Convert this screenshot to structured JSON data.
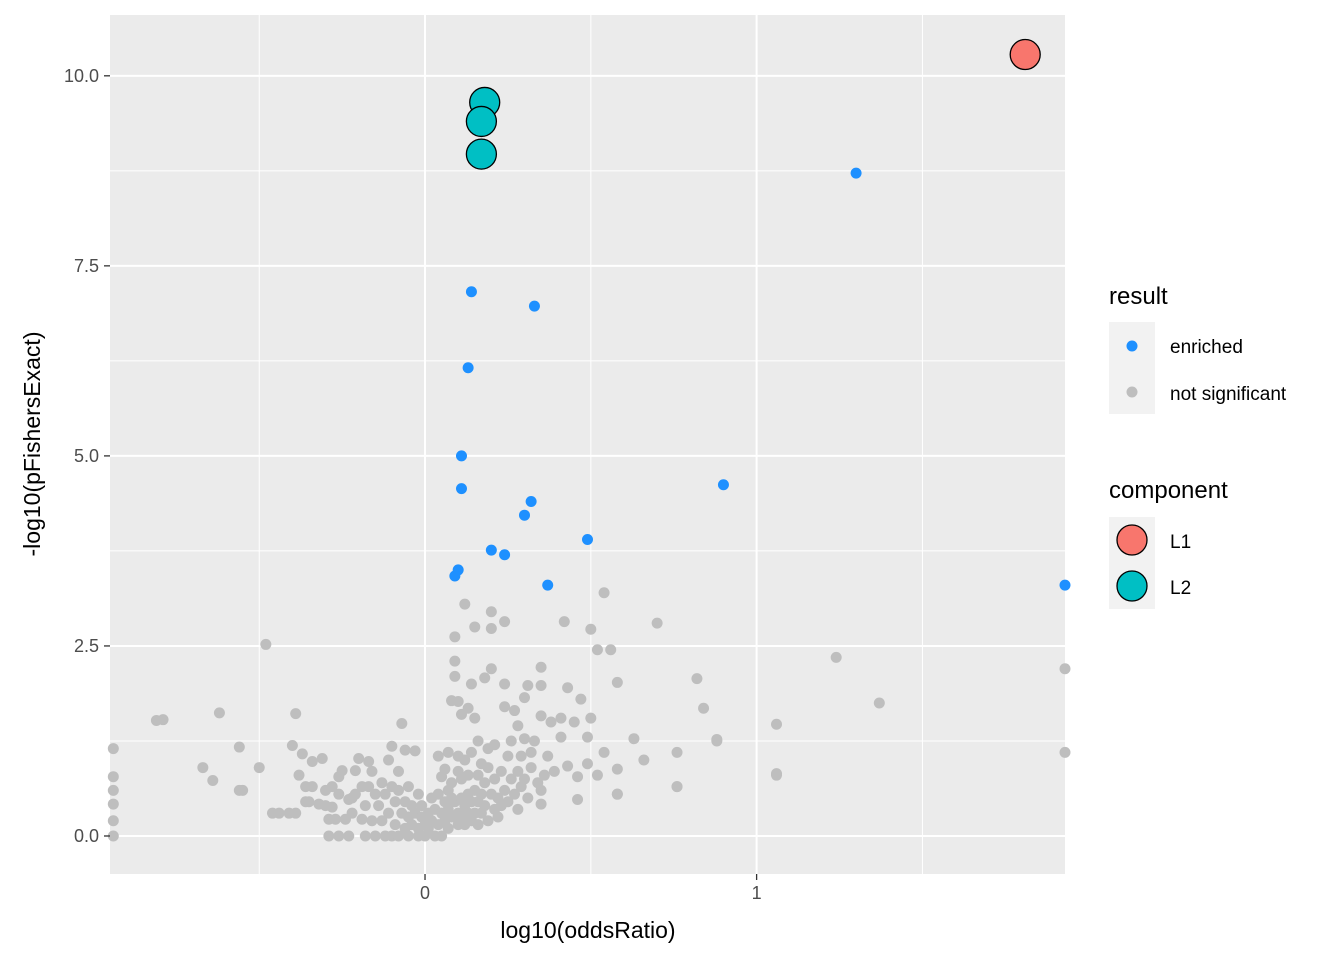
{
  "chart_data": {
    "type": "scatter",
    "xlabel": "log10(oddsRatio)",
    "ylabel": "-log10(pFishersExact)",
    "xlim": [
      -0.95,
      1.93
    ],
    "ylim": [
      -0.5,
      10.8
    ],
    "x_ticks": [
      0,
      1
    ],
    "x_tick_labels": [
      "0",
      "1"
    ],
    "x_minor_ticks": [
      -0.5,
      0.5,
      1.5
    ],
    "y_ticks": [
      0.0,
      2.5,
      5.0,
      7.5,
      10.0
    ],
    "y_tick_labels": [
      "0.0",
      "2.5",
      "5.0",
      "7.5",
      "10.0"
    ],
    "y_minor_ticks": [
      1.25,
      3.75,
      6.25,
      8.75
    ],
    "grid": true,
    "legend_position": "right",
    "colors": {
      "panel": "#ebebeb",
      "grid": "#ffffff",
      "enriched": "#1e90ff",
      "not_significant": "#bebebe",
      "L1": "#f8766d",
      "L2": "#00bfc4"
    },
    "legend": {
      "result_title": "result",
      "result_items": [
        {
          "label": "enriched",
          "color": "#1e90ff"
        },
        {
          "label": "not significant",
          "color": "#bebebe"
        }
      ],
      "component_title": "component",
      "component_items": [
        {
          "label": "L1",
          "color": "#f8766d"
        },
        {
          "label": "L2",
          "color": "#00bfc4"
        }
      ]
    },
    "series": [
      {
        "name": "not significant",
        "color": "#bebebe",
        "points": [
          [
            -0.94,
            1.15
          ],
          [
            -0.94,
            0.78
          ],
          [
            -0.94,
            0.6
          ],
          [
            -0.94,
            0.42
          ],
          [
            -0.94,
            0.2
          ],
          [
            -0.94,
            0.0
          ],
          [
            -0.81,
            1.52
          ],
          [
            -0.79,
            1.53
          ],
          [
            -0.67,
            0.9
          ],
          [
            -0.64,
            0.73
          ],
          [
            -0.62,
            1.62
          ],
          [
            -0.56,
            1.17
          ],
          [
            -0.56,
            0.6
          ],
          [
            -0.55,
            0.6
          ],
          [
            -0.5,
            0.9
          ],
          [
            -0.48,
            2.52
          ],
          [
            -0.46,
            0.3
          ],
          [
            -0.44,
            0.3
          ],
          [
            -0.41,
            0.3
          ],
          [
            -0.4,
            1.19
          ],
          [
            -0.39,
            1.61
          ],
          [
            -0.39,
            0.3
          ],
          [
            -0.38,
            0.8
          ],
          [
            -0.37,
            1.08
          ],
          [
            -0.36,
            0.45
          ],
          [
            -0.36,
            0.65
          ],
          [
            -0.35,
            0.45
          ],
          [
            -0.34,
            0.65
          ],
          [
            -0.34,
            0.98
          ],
          [
            -0.32,
            0.42
          ],
          [
            -0.31,
            1.02
          ],
          [
            -0.3,
            0.6
          ],
          [
            -0.3,
            0.4
          ],
          [
            -0.29,
            0.22
          ],
          [
            -0.29,
            0.0
          ],
          [
            -0.28,
            0.65
          ],
          [
            -0.28,
            0.38
          ],
          [
            -0.27,
            0.22
          ],
          [
            -0.26,
            0.0
          ],
          [
            -0.26,
            0.78
          ],
          [
            -0.26,
            0.55
          ],
          [
            -0.25,
            0.86
          ],
          [
            -0.24,
            0.22
          ],
          [
            -0.23,
            0.48
          ],
          [
            -0.23,
            0.0
          ],
          [
            -0.22,
            0.5
          ],
          [
            -0.22,
            0.3
          ],
          [
            -0.21,
            0.55
          ],
          [
            -0.21,
            0.86
          ],
          [
            -0.2,
            1.02
          ],
          [
            -0.19,
            0.22
          ],
          [
            -0.19,
            0.65
          ],
          [
            -0.18,
            0.4
          ],
          [
            -0.18,
            0.0
          ],
          [
            -0.17,
            0.65
          ],
          [
            -0.17,
            0.98
          ],
          [
            -0.16,
            0.2
          ],
          [
            -0.16,
            0.85
          ],
          [
            -0.15,
            0.55
          ],
          [
            -0.15,
            0.0
          ],
          [
            -0.14,
            0.4
          ],
          [
            -0.13,
            0.7
          ],
          [
            -0.13,
            0.2
          ],
          [
            -0.12,
            0.0
          ],
          [
            -0.12,
            0.55
          ],
          [
            -0.11,
            1.0
          ],
          [
            -0.11,
            0.3
          ],
          [
            -0.1,
            0.65
          ],
          [
            -0.1,
            0.0
          ],
          [
            -0.1,
            1.18
          ],
          [
            -0.09,
            0.45
          ],
          [
            -0.09,
            0.15
          ],
          [
            -0.08,
            0.85
          ],
          [
            -0.08,
            0.6
          ],
          [
            -0.08,
            0.0
          ],
          [
            -0.07,
            0.3
          ],
          [
            -0.07,
            1.48
          ],
          [
            -0.06,
            0.45
          ],
          [
            -0.06,
            0.1
          ],
          [
            -0.06,
            1.13
          ],
          [
            -0.05,
            0.65
          ],
          [
            -0.05,
            0.25
          ],
          [
            -0.05,
            0.0
          ],
          [
            -0.04,
            0.4
          ],
          [
            -0.04,
            0.15
          ],
          [
            -0.03,
            0.3
          ],
          [
            -0.03,
            1.12
          ],
          [
            -0.02,
            0.55
          ],
          [
            -0.02,
            0.1
          ],
          [
            -0.02,
            0.0
          ],
          [
            -0.01,
            0.25
          ],
          [
            -0.01,
            0.4
          ],
          [
            0.0,
            0.15
          ],
          [
            0.0,
            0.0
          ],
          [
            0.01,
            0.3
          ],
          [
            0.01,
            0.1
          ],
          [
            0.02,
            0.5
          ],
          [
            0.02,
            0.2
          ],
          [
            0.03,
            0.0
          ],
          [
            0.03,
            0.35
          ],
          [
            0.04,
            0.55
          ],
          [
            0.04,
            0.15
          ],
          [
            0.04,
            1.05
          ],
          [
            0.05,
            0.3
          ],
          [
            0.05,
            0.0
          ],
          [
            0.05,
            0.78
          ],
          [
            0.06,
            0.45
          ],
          [
            0.06,
            0.2
          ],
          [
            0.06,
            0.88
          ],
          [
            0.07,
            0.6
          ],
          [
            0.07,
            0.35
          ],
          [
            0.07,
            0.1
          ],
          [
            0.07,
            1.1
          ],
          [
            0.08,
            0.5
          ],
          [
            0.08,
            0.25
          ],
          [
            0.08,
            1.78
          ],
          [
            0.08,
            0.7
          ],
          [
            0.09,
            2.3
          ],
          [
            0.09,
            2.62
          ],
          [
            0.09,
            2.1
          ],
          [
            0.09,
            0.45
          ],
          [
            0.1,
            0.3
          ],
          [
            0.1,
            0.15
          ],
          [
            0.1,
            1.77
          ],
          [
            0.1,
            0.85
          ],
          [
            0.1,
            1.05
          ],
          [
            0.11,
            0.5
          ],
          [
            0.11,
            0.25
          ],
          [
            0.11,
            1.6
          ],
          [
            0.11,
            0.75
          ],
          [
            0.12,
            3.05
          ],
          [
            0.12,
            0.4
          ],
          [
            0.12,
            0.15
          ],
          [
            0.12,
            1.0
          ],
          [
            0.13,
            0.55
          ],
          [
            0.13,
            0.3
          ],
          [
            0.13,
            1.68
          ],
          [
            0.13,
            0.8
          ],
          [
            0.14,
            2.0
          ],
          [
            0.14,
            0.45
          ],
          [
            0.14,
            0.2
          ],
          [
            0.14,
            1.1
          ],
          [
            0.15,
            0.6
          ],
          [
            0.15,
            2.75
          ],
          [
            0.15,
            0.3
          ],
          [
            0.15,
            1.55
          ],
          [
            0.16,
            0.8
          ],
          [
            0.16,
            0.45
          ],
          [
            0.16,
            1.25
          ],
          [
            0.16,
            0.15
          ],
          [
            0.17,
            0.55
          ],
          [
            0.17,
            0.3
          ],
          [
            0.17,
            0.95
          ],
          [
            0.18,
            2.08
          ],
          [
            0.18,
            0.7
          ],
          [
            0.18,
            0.4
          ],
          [
            0.19,
            0.9
          ],
          [
            0.19,
            0.2
          ],
          [
            0.19,
            1.15
          ],
          [
            0.2,
            2.95
          ],
          [
            0.2,
            2.2
          ],
          [
            0.2,
            2.73
          ],
          [
            0.2,
            0.55
          ],
          [
            0.21,
            0.35
          ],
          [
            0.21,
            0.75
          ],
          [
            0.21,
            1.2
          ],
          [
            0.22,
            0.5
          ],
          [
            0.22,
            0.25
          ],
          [
            0.23,
            0.85
          ],
          [
            0.23,
            0.4
          ],
          [
            0.24,
            2.82
          ],
          [
            0.24,
            1.7
          ],
          [
            0.24,
            0.6
          ],
          [
            0.24,
            2.0
          ],
          [
            0.25,
            1.05
          ],
          [
            0.25,
            0.45
          ],
          [
            0.26,
            0.75
          ],
          [
            0.26,
            1.25
          ],
          [
            0.27,
            1.65
          ],
          [
            0.27,
            0.55
          ],
          [
            0.28,
            0.85
          ],
          [
            0.28,
            1.45
          ],
          [
            0.28,
            0.35
          ],
          [
            0.29,
            1.05
          ],
          [
            0.29,
            0.65
          ],
          [
            0.3,
            1.82
          ],
          [
            0.3,
            1.28
          ],
          [
            0.3,
            0.75
          ],
          [
            0.31,
            1.98
          ],
          [
            0.31,
            0.5
          ],
          [
            0.32,
            1.1
          ],
          [
            0.32,
            0.9
          ],
          [
            0.33,
            1.25
          ],
          [
            0.34,
            0.7
          ],
          [
            0.35,
            2.22
          ],
          [
            0.35,
            1.98
          ],
          [
            0.35,
            1.58
          ],
          [
            0.35,
            0.6
          ],
          [
            0.35,
            0.42
          ],
          [
            0.36,
            0.8
          ],
          [
            0.37,
            1.05
          ],
          [
            0.38,
            1.5
          ],
          [
            0.39,
            0.85
          ],
          [
            0.41,
            1.55
          ],
          [
            0.41,
            1.3
          ],
          [
            0.42,
            2.82
          ],
          [
            0.43,
            1.95
          ],
          [
            0.43,
            0.92
          ],
          [
            0.45,
            1.5
          ],
          [
            0.46,
            0.48
          ],
          [
            0.46,
            0.78
          ],
          [
            0.47,
            1.8
          ],
          [
            0.49,
            1.3
          ],
          [
            0.49,
            0.95
          ],
          [
            0.5,
            1.55
          ],
          [
            0.5,
            2.72
          ],
          [
            0.52,
            2.45
          ],
          [
            0.52,
            0.8
          ],
          [
            0.54,
            3.2
          ],
          [
            0.54,
            1.1
          ],
          [
            0.56,
            2.45
          ],
          [
            0.58,
            2.02
          ],
          [
            0.58,
            0.88
          ],
          [
            0.58,
            0.55
          ],
          [
            0.58,
            0.55
          ],
          [
            0.63,
            1.28
          ],
          [
            0.66,
            1.0
          ],
          [
            0.7,
            2.8
          ],
          [
            0.76,
            1.1
          ],
          [
            0.76,
            0.65
          ],
          [
            0.76,
            0.65
          ],
          [
            0.82,
            2.07
          ],
          [
            0.84,
            1.68
          ],
          [
            0.88,
            1.27
          ],
          [
            0.88,
            1.25
          ],
          [
            1.06,
            1.47
          ],
          [
            1.06,
            0.82
          ],
          [
            1.06,
            0.8
          ],
          [
            1.24,
            2.35
          ],
          [
            1.37,
            1.75
          ],
          [
            1.93,
            2.2
          ],
          [
            1.93,
            1.1
          ]
        ]
      },
      {
        "name": "enriched",
        "color": "#1e90ff",
        "points": [
          [
            1.3,
            8.72
          ],
          [
            0.14,
            7.16
          ],
          [
            0.33,
            6.97
          ],
          [
            0.13,
            6.16
          ],
          [
            0.11,
            5.0
          ],
          [
            0.11,
            4.57
          ],
          [
            0.9,
            4.62
          ],
          [
            0.32,
            4.4
          ],
          [
            0.3,
            4.22
          ],
          [
            0.49,
            3.9
          ],
          [
            0.2,
            3.76
          ],
          [
            0.24,
            3.7
          ],
          [
            0.1,
            3.5
          ],
          [
            0.09,
            3.42
          ],
          [
            0.37,
            3.3
          ],
          [
            1.93,
            3.3
          ]
        ]
      },
      {
        "name": "L1",
        "color": "#f8766d",
        "points": [
          [
            1.81,
            10.28
          ]
        ]
      },
      {
        "name": "L2",
        "color": "#00bfc4",
        "points": [
          [
            0.18,
            9.65
          ],
          [
            0.17,
            9.4
          ],
          [
            0.17,
            8.97
          ]
        ]
      }
    ]
  }
}
